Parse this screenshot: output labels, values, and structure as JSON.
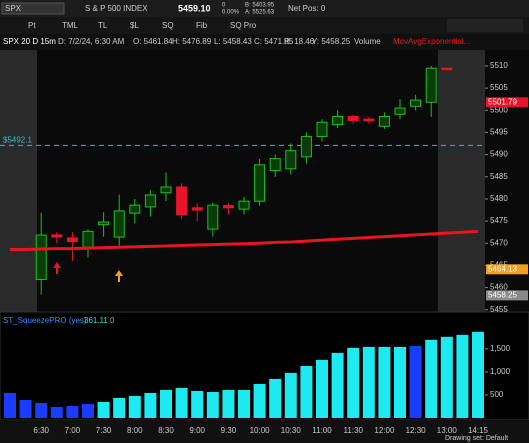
{
  "toolbar": {
    "symbol": "SPX",
    "description": "S & P 500 INDEX",
    "last": "5459.10",
    "change": "0",
    "change_pct": "0.00%",
    "bid": "B: 5403.95",
    "ask": "A: 5525.63",
    "net_pos": "Net Pos: 0",
    "tools": [
      "Pt",
      "TML",
      "TL",
      "$L",
      "SQ",
      "Fib",
      "SQ Pro"
    ]
  },
  "info": {
    "name": "SPX 20 D 15m",
    "date": "D: 7/2/24, 6:30 AM",
    "open": "O: 5461.84",
    "high": "H: 5476.89",
    "low": "L: 5458.43",
    "close": "C: 5471.85",
    "range": "R: 18.46",
    "prev": "Y: 5458.25",
    "volume": "Volume",
    "study": "MovAvgExponential..."
  },
  "chart_data": [
    {
      "type": "candlestick",
      "categories": [
        null,
        null,
        "6:30",
        null,
        "7:00",
        null,
        "7:30",
        null,
        "8:00",
        null,
        "8:30",
        null,
        "9:00",
        null,
        "9:30",
        null,
        "10:00",
        null,
        "10:30",
        null,
        "11:00",
        null,
        "11:30",
        null,
        "12:00",
        null,
        "12:30",
        null,
        "13:00",
        null,
        "14:15"
      ],
      "open": [
        null,
        null,
        5461.84,
        5471.9,
        5471.2,
        5469.1,
        5474.2,
        5471.4,
        5476.8,
        5478.2,
        5481.4,
        5482.7,
        5478,
        5473.2,
        5478.5,
        5477.7,
        5479.5,
        5486.4,
        5486.8,
        5489.5,
        5494.1,
        5496.8,
        5498.6,
        5498,
        5496.4,
        5499.1,
        5500.9,
        5501.8,
        5509.5,
        null,
        null
      ],
      "high": [
        null,
        null,
        5476.89,
        5472.5,
        5472.5,
        5473.2,
        5477,
        5481,
        5480,
        5482,
        5486,
        5483.5,
        5479,
        5479.2,
        5479,
        5480.5,
        5489,
        5490,
        5492.5,
        5495,
        5498,
        5500,
        5499,
        5498.5,
        5499.5,
        5502.5,
        5503.5,
        5510,
        5509.6,
        null,
        null
      ],
      "low": [
        null,
        null,
        5458.43,
        5470,
        5466,
        5466.8,
        5471.5,
        5469.5,
        5474.5,
        5476,
        5479.5,
        5475.5,
        5475,
        5471.5,
        5476.5,
        5476.5,
        5478.5,
        5485,
        5485.5,
        5488,
        5493,
        5496,
        5497,
        5497,
        5495.8,
        5498,
        5500,
        5498.5,
        5509.2,
        null,
        null
      ],
      "close": [
        null,
        null,
        5471.85,
        5471.4,
        5470.4,
        5472.7,
        5474.8,
        5477.3,
        5478.6,
        5480.9,
        5482.7,
        5476.4,
        5477.5,
        5478.6,
        5478,
        5479.5,
        5487.7,
        5489.1,
        5490.9,
        5494.1,
        5497.3,
        5498.6,
        5497.7,
        5497.7,
        5498.6,
        5500.5,
        5502.3,
        5509.5,
        5509.3,
        null,
        null
      ],
      "up_color": "#19c219",
      "down_color": "#e8142a",
      "ema": {
        "name": "MovAvgExponential...",
        "color": "#e8141e",
        "values": [
          5468.6,
          5468.6,
          5468.7,
          5468.8,
          5468.8,
          5468.9,
          5469.0,
          5469.1,
          5469.2,
          5469.3,
          5469.4,
          5469.5,
          5469.6,
          5469.7,
          5469.8,
          5469.9,
          5470.0,
          5470.2,
          5470.3,
          5470.5,
          5470.7,
          5470.9,
          5471.1,
          5471.3,
          5471.5,
          5471.7,
          5471.9,
          5472.1,
          5472.3,
          5472.5,
          5472.7
        ]
      },
      "ylim": [
        5454.5,
        5513.6
      ],
      "yticks": [
        5455,
        5460,
        5465,
        5470,
        5475,
        5480,
        5485,
        5490,
        5495,
        5500,
        5505,
        5510
      ],
      "level": {
        "value": 5492.1,
        "label": "$5492.1",
        "color": "#3fb8c4"
      },
      "price_markers": [
        {
          "value": 5501.79,
          "label": "5501.79",
          "color": "#e8142a"
        },
        {
          "value": 5464.13,
          "label": "5464.13",
          "color": "#f0a020"
        },
        {
          "value": 5458.25,
          "label": "5458.25",
          "color": "#8a8a8a"
        }
      ]
    },
    {
      "type": "bar",
      "title": "ST_SqueezePRO (yes)",
      "readout": "361.11",
      "readout2": "0",
      "values": [
        543,
        391,
        326,
        239,
        261,
        304,
        348,
        435,
        478,
        543,
        609,
        652,
        587,
        565,
        609,
        609,
        739,
        848,
        978,
        1130,
        1261,
        1413,
        1522,
        1543,
        1543,
        1543,
        1565,
        1696,
        1761,
        1804,
        1870
      ],
      "colors": [
        "#1a3cff",
        "#1a3cff",
        "#1a3cff",
        "#1a3cff",
        "#1a3cff",
        "#1a3cff",
        "#1de9f0",
        "#1de9f0",
        "#1de9f0",
        "#1de9f0",
        "#1de9f0",
        "#1de9f0",
        "#1de9f0",
        "#1de9f0",
        "#1de9f0",
        "#1de9f0",
        "#1de9f0",
        "#1de9f0",
        "#1de9f0",
        "#1de9f0",
        "#1de9f0",
        "#1de9f0",
        "#1de9f0",
        "#1de9f0",
        "#1de9f0",
        "#1de9f0",
        "#1a3cff",
        "#1de9f0",
        "#1de9f0",
        "#1de9f0",
        "#1de9f0"
      ],
      "ylim": [
        0,
        2300
      ],
      "yticks": [
        500,
        {
          "value": 1000,
          "label": "1,000"
        },
        {
          "value": 1500,
          "label": "1,500"
        }
      ]
    }
  ],
  "footer": {
    "drawing_set": "Drawing set: Default"
  }
}
